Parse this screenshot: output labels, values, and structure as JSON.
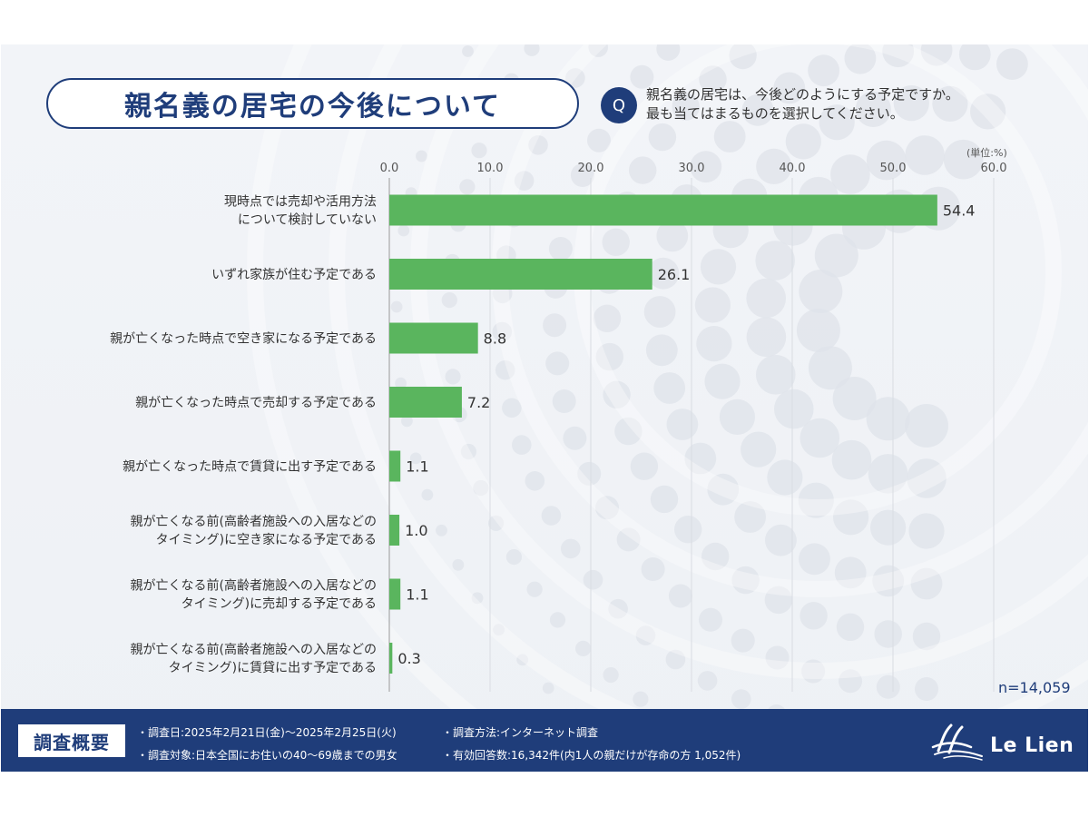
{
  "title": "親名義の居宅の今後について",
  "question": {
    "badge": "Q",
    "line1": "親名義の居宅は、今後どのようにする予定ですか。",
    "line2": "最も当てはまるものを選択してください。"
  },
  "unit_label": "(単位:%)",
  "sample_size": "n=14,059",
  "chart_data": {
    "type": "bar",
    "orientation": "horizontal",
    "categories": [
      [
        "現時点では売却や活用方法",
        "について検討していない"
      ],
      [
        "いずれ家族が住む予定である"
      ],
      [
        "親が亡くなった時点で空き家になる予定である"
      ],
      [
        "親が亡くなった時点で売却する予定である"
      ],
      [
        "親が亡くなった時点で賃貸に出す予定である"
      ],
      [
        "親が亡くなる前(高齢者施設への入居などの",
        "タイミング)に空き家になる予定である"
      ],
      [
        "親が亡くなる前(高齢者施設への入居などの",
        "タイミング)に売却する予定である"
      ],
      [
        "親が亡くなる前(高齢者施設への入居などの",
        "タイミング)に賃貸に出す予定である"
      ]
    ],
    "values": [
      54.4,
      26.1,
      8.8,
      7.2,
      1.1,
      1.0,
      1.1,
      0.3
    ],
    "value_labels": [
      "54.4",
      "26.1",
      "8.8",
      "7.2",
      "1.1",
      "1.0",
      "1.1",
      "0.3"
    ],
    "xlim": [
      0,
      60
    ],
    "ticks": [
      "0.0",
      "10.0",
      "20.0",
      "30.0",
      "40.0",
      "50.0",
      "60.0"
    ],
    "tick_values": [
      0,
      10,
      20,
      30,
      40,
      50,
      60
    ],
    "bar_color": "#5ab55e",
    "grid": true,
    "axis_position": "top"
  },
  "footer": {
    "title": "調査概要",
    "date": "・調査日:2025年2月21日(金)〜2025年2月25日(火)",
    "method": "・調査方法:インターネット調査",
    "target": "・調査対象:日本全国にお住いの40〜69歳までの男女",
    "responses": "・有効回答数:16,342件(内1人の親だけが存命の方 1,052件)",
    "logo": "Le Lien"
  },
  "colors": {
    "navy": "#1f3d7a",
    "bar": "#5ab55e"
  }
}
